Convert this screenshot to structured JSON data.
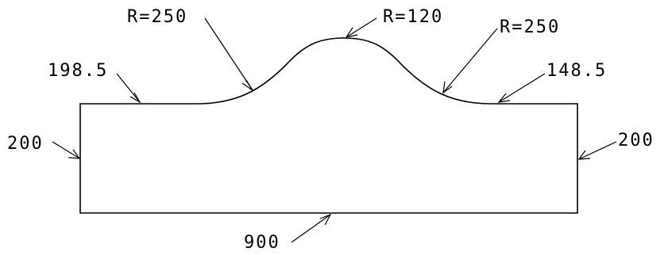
{
  "drawing": {
    "line_color": "#000000",
    "background": "#ffffff",
    "labels": {
      "top_left_length": "198.5",
      "top_right_length": "148.5",
      "left_height": "200",
      "right_height": "200",
      "bottom_length": "900",
      "left_radius": "R=250",
      "center_radius": "R=120",
      "right_radius": "R=250"
    }
  }
}
